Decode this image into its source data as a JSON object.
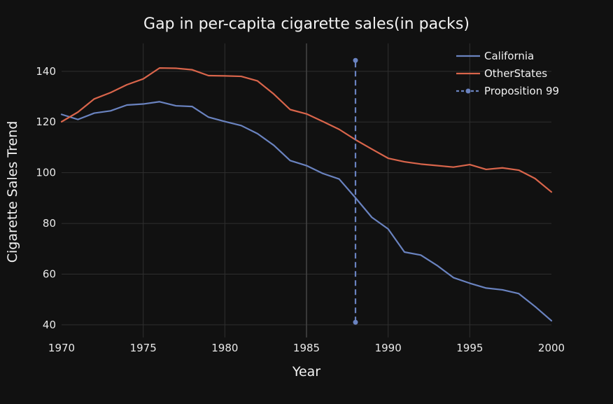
{
  "chart_data": {
    "type": "line",
    "title": "Gap in per-capita cigarette sales(in packs)",
    "xlabel": "Year",
    "ylabel": "Cigarette Sales Trend",
    "xlim": [
      1970,
      2000
    ],
    "ylim": [
      35,
      151
    ],
    "x_ticks": [
      1970,
      1975,
      1980,
      1985,
      1990,
      1995,
      2000
    ],
    "y_ticks": [
      40,
      60,
      80,
      100,
      120,
      140
    ],
    "grid": true,
    "legend_position": "top-right",
    "x": [
      1970,
      1971,
      1972,
      1973,
      1974,
      1975,
      1976,
      1977,
      1978,
      1979,
      1980,
      1981,
      1982,
      1983,
      1984,
      1985,
      1986,
      1987,
      1988,
      1989,
      1990,
      1991,
      1992,
      1993,
      1994,
      1995,
      1996,
      1997,
      1998,
      1999,
      2000
    ],
    "series": [
      {
        "name": "California",
        "color": "#6a83c0",
        "values": [
          123.0,
          121.0,
          123.5,
          124.4,
          126.7,
          127.1,
          128.0,
          126.4,
          126.1,
          121.9,
          120.2,
          118.6,
          115.4,
          110.8,
          104.8,
          102.8,
          99.7,
          97.5,
          90.1,
          82.4,
          77.8,
          68.7,
          67.5,
          63.4,
          58.6,
          56.4,
          54.5,
          53.8,
          52.3,
          47.2,
          41.6
        ]
      },
      {
        "name": "OtherStates",
        "color": "#d9654b",
        "values": [
          120.1,
          123.9,
          129.1,
          131.6,
          134.7,
          137.0,
          141.3,
          141.2,
          140.6,
          138.3,
          138.2,
          138.0,
          136.2,
          131.0,
          124.9,
          123.2,
          120.2,
          117.1,
          113.0,
          109.3,
          105.7,
          104.3,
          103.4,
          102.8,
          102.2,
          103.2,
          101.3,
          101.9,
          101.0,
          97.7,
          92.4
        ]
      },
      {
        "name": "Proposition 99",
        "color": "#6a83c0",
        "style": "dashed",
        "x": [
          1988,
          1988
        ],
        "values": [
          41,
          144.3
        ]
      }
    ]
  }
}
